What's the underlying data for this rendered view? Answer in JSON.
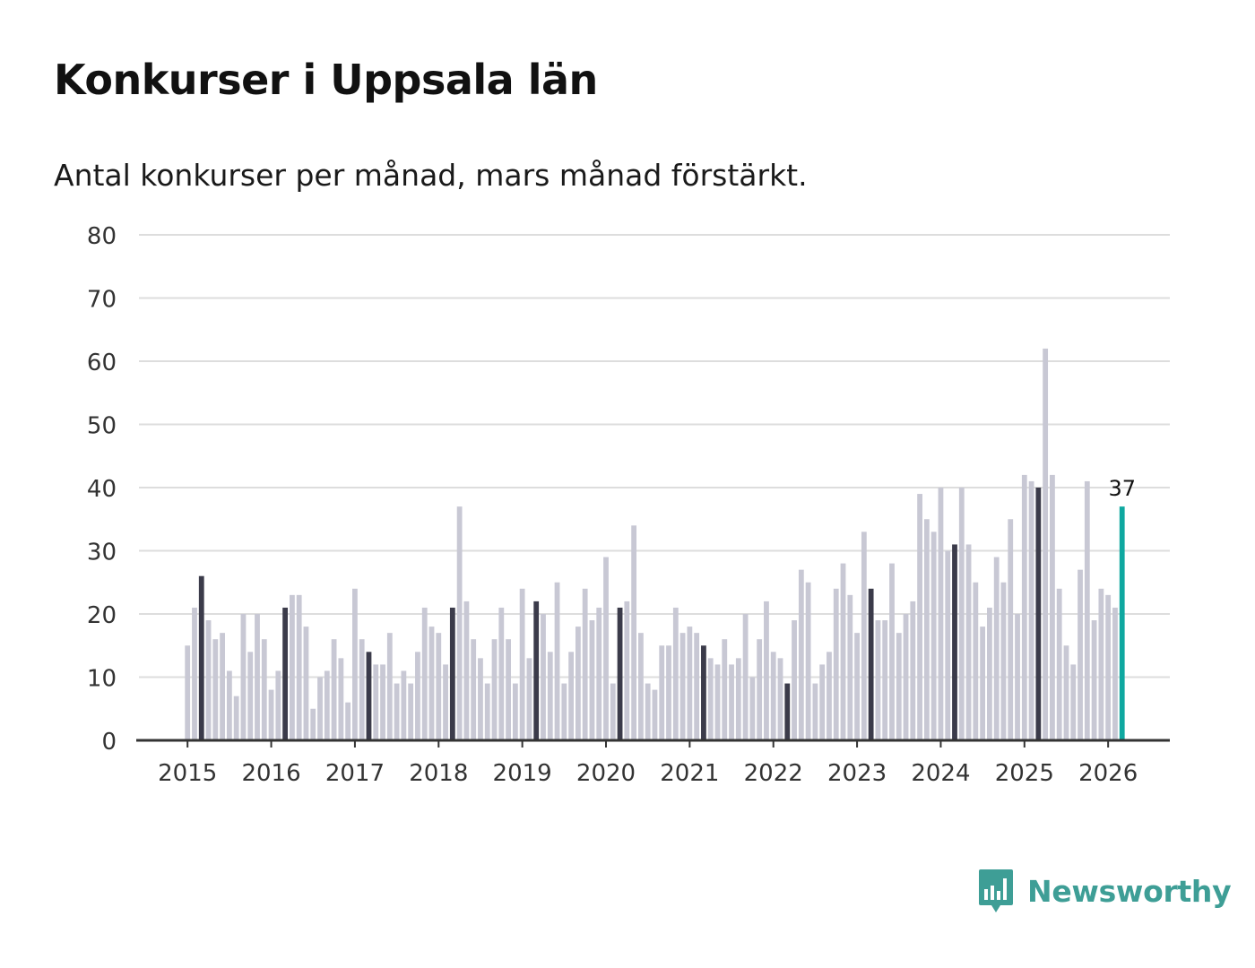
{
  "header": {
    "title": "Konkurser i Uppsala län",
    "subtitle": "Antal konkurser per månad, mars månad förstärkt."
  },
  "brand": {
    "name": "Newsworthy",
    "logo_icon": "bar-chart-icon",
    "color": "#3e9e96"
  },
  "colors": {
    "bar": "#c8c8d4",
    "highlight": "#3b3b4a",
    "latest": "#0fa8a0",
    "grid": "#dddddd",
    "axis": "#333333"
  },
  "chart_data": {
    "type": "bar",
    "title": "Konkurser i Uppsala län",
    "subtitle": "Antal konkurser per månad, mars månad förstärkt.",
    "xlabel": "",
    "ylabel": "",
    "ylim": [
      0,
      80
    ],
    "yticks": [
      0,
      10,
      20,
      30,
      40,
      50,
      60,
      70,
      80
    ],
    "grid": true,
    "start_month": "2015-01",
    "highlight_month": "mars",
    "year_labels": [
      "2015",
      "2016",
      "2017",
      "2018",
      "2019",
      "2020",
      "2021",
      "2022",
      "2023",
      "2024",
      "2025",
      "2026"
    ],
    "latest_label": "37",
    "values": [
      15,
      21,
      26,
      19,
      16,
      17,
      11,
      7,
      20,
      14,
      20,
      16,
      8,
      11,
      21,
      23,
      23,
      18,
      5,
      10,
      11,
      16,
      13,
      6,
      24,
      16,
      14,
      12,
      12,
      17,
      9,
      11,
      9,
      14,
      21,
      18,
      17,
      12,
      21,
      37,
      22,
      16,
      13,
      9,
      16,
      21,
      16,
      9,
      24,
      13,
      22,
      20,
      14,
      25,
      9,
      14,
      18,
      24,
      19,
      21,
      29,
      9,
      21,
      22,
      34,
      17,
      9,
      8,
      15,
      15,
      21,
      17,
      18,
      17,
      15,
      13,
      12,
      16,
      12,
      13,
      20,
      10,
      16,
      22,
      14,
      13,
      9,
      19,
      27,
      25,
      9,
      12,
      14,
      24,
      28,
      23,
      17,
      33,
      24,
      19,
      19,
      28,
      17,
      20,
      22,
      39,
      35,
      33,
      40,
      30,
      31,
      40,
      31,
      25,
      18,
      21,
      29,
      25,
      35,
      20,
      42,
      41,
      40,
      62,
      42,
      24,
      15,
      12,
      27,
      41,
      19,
      24,
      23,
      21,
      37
    ]
  }
}
